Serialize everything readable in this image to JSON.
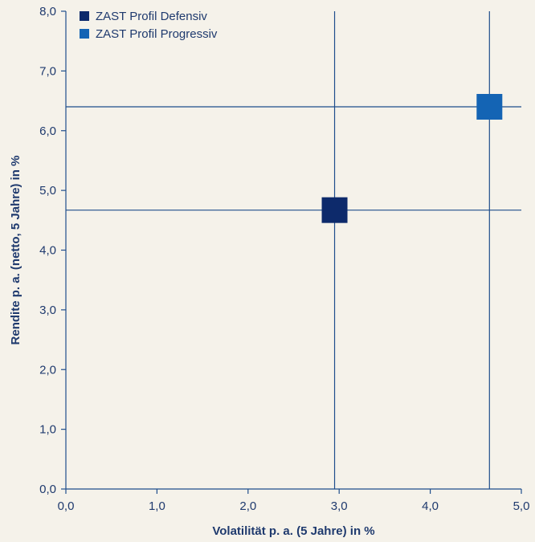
{
  "chart_data": {
    "type": "scatter",
    "xlabel": "Volatilität p. a. (5 Jahre) in %",
    "ylabel": "Rendite p. a. (netto, 5 Jahre) in %",
    "xlim": [
      0,
      5
    ],
    "ylim": [
      0,
      8
    ],
    "x_ticks": [
      "0,0",
      "1,0",
      "2,0",
      "3,0",
      "4,0",
      "5,0"
    ],
    "y_ticks": [
      "0,0",
      "1,0",
      "2,0",
      "3,0",
      "4,0",
      "5,0",
      "6,0",
      "7,0",
      "8,0"
    ],
    "grid": false,
    "legend_position": "top-left",
    "reference_lines": true,
    "series": [
      {
        "name": "ZAST Profil Defensiv",
        "color": "#0d2a6b",
        "x": 2.95,
        "y": 4.67
      },
      {
        "name": "ZAST Profil Progressiv",
        "color": "#1464b4",
        "x": 4.65,
        "y": 6.4
      }
    ],
    "axis_color": "#1f4e8c",
    "text_color": "#1f3a6e",
    "background": "#f5f2ea"
  }
}
